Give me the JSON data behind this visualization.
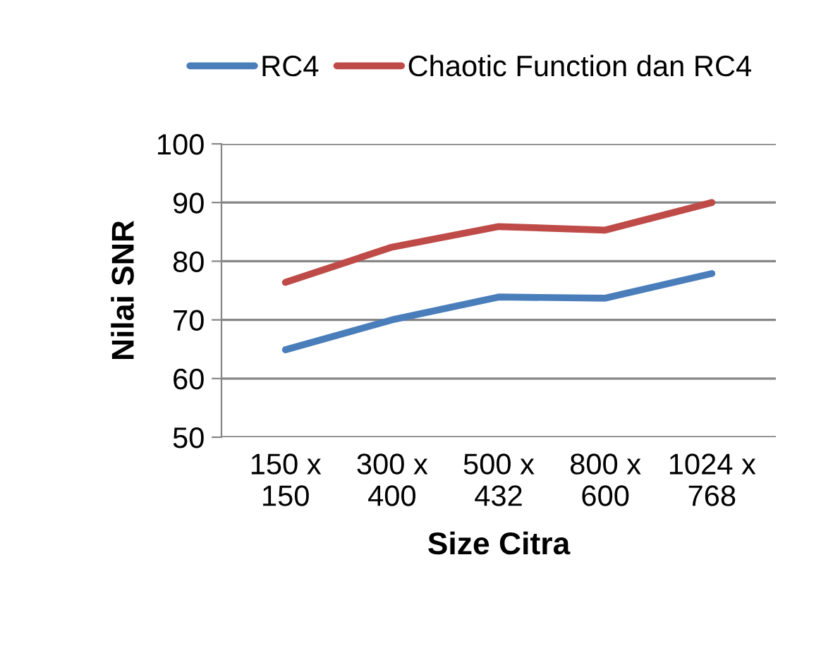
{
  "chart_data": {
    "type": "line",
    "xlabel": "Size Citra",
    "ylabel": "Nilai SNR",
    "categories": [
      "150 x\n150",
      "300 x\n400",
      "500 x\n432",
      "800 x\n600",
      "1024 x\n768"
    ],
    "series": [
      {
        "name": "RC4",
        "color": "#4a7ebb",
        "values": [
          64.9,
          70,
          73.9,
          73.7,
          77.9
        ]
      },
      {
        "name": "Chaotic Function dan RC4",
        "color": "#be4b48",
        "values": [
          76.4,
          82.4,
          85.9,
          85.3,
          90
        ]
      }
    ],
    "ylim": [
      50,
      100
    ],
    "yticks": [
      50,
      60,
      70,
      80,
      90,
      100
    ],
    "grid": "y",
    "legend": "top",
    "marker": "none",
    "line_style": "solid"
  }
}
